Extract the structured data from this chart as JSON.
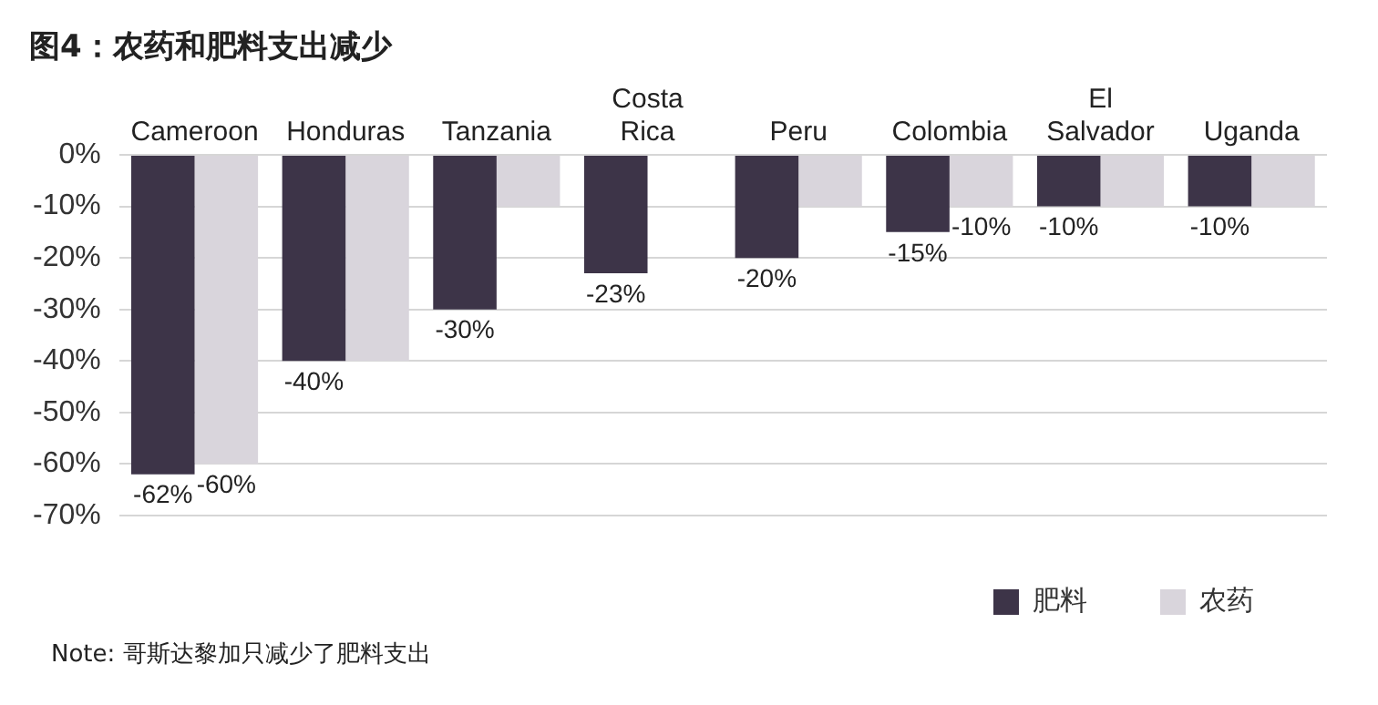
{
  "chart_data": {
    "type": "bar",
    "title": "图4：农药和肥料支出减少",
    "categories": [
      "Cameroon",
      "Honduras",
      "Tanzania",
      "Costa Rica",
      "Peru",
      "Colombia",
      "El Salvador",
      "Uganda"
    ],
    "series": [
      {
        "name": "肥料",
        "color": "#3d3448",
        "values": [
          -62,
          -40,
          -30,
          -23,
          -20,
          -15,
          -10,
          -10
        ],
        "value_labels": [
          "-62%",
          "-40%",
          "-30%",
          "-23%",
          "-20%",
          "-15%",
          "-10%",
          "-10%"
        ]
      },
      {
        "name": "农药",
        "color": "#d9d5dc",
        "values": [
          -60,
          -40,
          -10,
          null,
          -10,
          -10,
          -10,
          -10
        ],
        "value_labels": [
          "-60%",
          null,
          null,
          null,
          null,
          "-10%",
          null,
          null
        ]
      }
    ],
    "ylim": [
      -70,
      0
    ],
    "yticks": [
      {
        "value": 0,
        "label": "0%"
      },
      {
        "value": -10,
        "label": "-10%"
      },
      {
        "value": -20,
        "label": "-20%"
      },
      {
        "value": -30,
        "label": "-30%"
      },
      {
        "value": -40,
        "label": "-40%"
      },
      {
        "value": -50,
        "label": "-50%"
      },
      {
        "value": -60,
        "label": "-60%"
      },
      {
        "value": -70,
        "label": "-70%"
      }
    ],
    "grid": "y",
    "legend": "bottom right",
    "annotations": [
      "Note: 哥斯达黎加只减少了肥料支出"
    ]
  }
}
